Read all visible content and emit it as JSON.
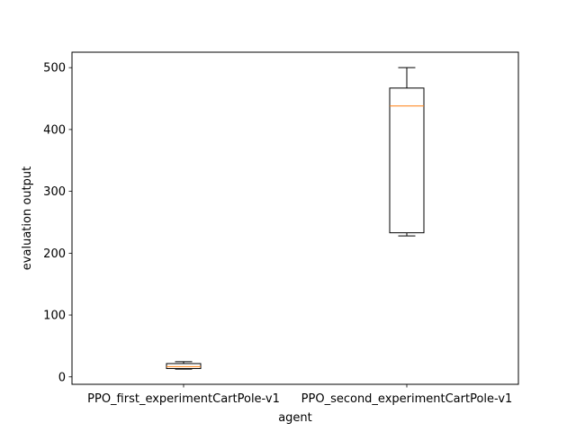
{
  "chart_data": {
    "type": "box",
    "xlabel": "agent",
    "ylabel": "evaluation output",
    "categories": [
      "PPO_first_experimentCartPole-v1",
      "PPO_second_experimentCartPole-v1"
    ],
    "boxes": [
      {
        "name": "PPO_first_experimentCartPole-v1",
        "whisker_low": 12.5,
        "q1": 13.5,
        "median": 16.5,
        "q3": 21.5,
        "whisker_high": 24.5
      },
      {
        "name": "PPO_second_experimentCartPole-v1",
        "whisker_low": 228,
        "q1": 233,
        "median": 438,
        "q3": 467,
        "whisker_high": 500
      }
    ],
    "ylim": [
      -12,
      525
    ],
    "yticks": [
      0,
      100,
      200,
      300,
      400,
      500
    ],
    "grid": false,
    "colors": {
      "box": "#000000",
      "median": "#ff7f0e"
    }
  }
}
